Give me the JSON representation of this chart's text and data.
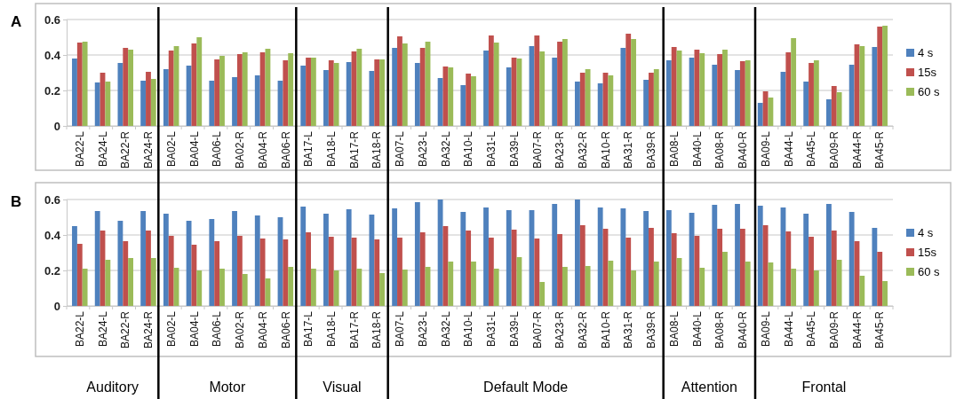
{
  "chart_data": [
    {
      "type": "bar",
      "title": "A",
      "categories": [
        "BA22-L",
        "BA24-L",
        "BA22-R",
        "BA24-R",
        "BA02-L",
        "BA04-L",
        "BA06-L",
        "BA02-R",
        "BA04-R",
        "BA06-R",
        "BA17-L",
        "BA18-L",
        "BA17-R",
        "BA18-R",
        "BA07-L",
        "BA23-L",
        "BA32-L",
        "BA10-L",
        "BA31-L",
        "BA39-L",
        "BA07-R",
        "BA23-R",
        "BA32-R",
        "BA10-R",
        "BA31-R",
        "BA39-R",
        "BA08-L",
        "BA40-L",
        "BA08-R",
        "BA40-R",
        "BA09-L",
        "BA44-L",
        "BA45-L",
        "BA09-R",
        "BA44-R",
        "BA45-R"
      ],
      "series": [
        {
          "name": "4 s",
          "color": "#4f81bd",
          "values": [
            0.38,
            0.245,
            0.355,
            0.255,
            0.32,
            0.34,
            0.255,
            0.275,
            0.285,
            0.255,
            0.34,
            0.315,
            0.36,
            0.31,
            0.44,
            0.355,
            0.27,
            0.23,
            0.425,
            0.33,
            0.45,
            0.385,
            0.25,
            0.24,
            0.44,
            0.26,
            0.37,
            0.385,
            0.345,
            0.315,
            0.13,
            0.305,
            0.25,
            0.15,
            0.345,
            0.445
          ]
        },
        {
          "name": "15s",
          "color": "#c0504d",
          "values": [
            0.47,
            0.3,
            0.44,
            0.305,
            0.425,
            0.465,
            0.375,
            0.405,
            0.415,
            0.37,
            0.385,
            0.37,
            0.42,
            0.375,
            0.505,
            0.44,
            0.335,
            0.295,
            0.51,
            0.385,
            0.51,
            0.475,
            0.3,
            0.3,
            0.52,
            0.3,
            0.445,
            0.43,
            0.405,
            0.365,
            0.195,
            0.415,
            0.355,
            0.225,
            0.46,
            0.56
          ]
        },
        {
          "name": "60 s",
          "color": "#9bbb59",
          "values": [
            0.475,
            0.25,
            0.43,
            0.265,
            0.45,
            0.5,
            0.395,
            0.415,
            0.435,
            0.41,
            0.385,
            0.355,
            0.435,
            0.375,
            0.465,
            0.475,
            0.33,
            0.28,
            0.47,
            0.38,
            0.42,
            0.49,
            0.32,
            0.285,
            0.49,
            0.32,
            0.425,
            0.41,
            0.43,
            0.37,
            0.16,
            0.495,
            0.37,
            0.19,
            0.45,
            0.565
          ]
        }
      ],
      "ylim": [
        0,
        0.6
      ],
      "yticks": [
        0,
        0.2,
        0.4,
        0.6
      ],
      "grid": "y",
      "legend": "right"
    },
    {
      "type": "bar",
      "title": "B",
      "categories": [
        "BA22-L",
        "BA24-L",
        "BA22-R",
        "BA24-R",
        "BA02-L",
        "BA04-L",
        "BA06-L",
        "BA02-R",
        "BA04-R",
        "BA06-R",
        "BA17-L",
        "BA18-L",
        "BA17-R",
        "BA18-R",
        "BA07-L",
        "BA23-L",
        "BA32-L",
        "BA10-L",
        "BA31-L",
        "BA39-L",
        "BA07-R",
        "BA23-R",
        "BA32-R",
        "BA10-R",
        "BA31-R",
        "BA39-R",
        "BA08-L",
        "BA40-L",
        "BA08-R",
        "BA40-R",
        "BA09-L",
        "BA44-L",
        "BA45-L",
        "BA09-R",
        "BA44-R",
        "BA45-R"
      ],
      "series": [
        {
          "name": "4 s",
          "color": "#4f81bd",
          "values": [
            0.45,
            0.535,
            0.48,
            0.535,
            0.52,
            0.48,
            0.49,
            0.535,
            0.51,
            0.5,
            0.56,
            0.52,
            0.545,
            0.515,
            0.55,
            0.585,
            0.6,
            0.53,
            0.555,
            0.54,
            0.54,
            0.575,
            0.6,
            0.555,
            0.55,
            0.535,
            0.54,
            0.525,
            0.57,
            0.575,
            0.565,
            0.555,
            0.52,
            0.575,
            0.53,
            0.44
          ]
        },
        {
          "name": "15s",
          "color": "#c0504d",
          "values": [
            0.35,
            0.425,
            0.365,
            0.425,
            0.395,
            0.345,
            0.365,
            0.395,
            0.38,
            0.375,
            0.415,
            0.39,
            0.385,
            0.375,
            0.385,
            0.415,
            0.45,
            0.425,
            0.385,
            0.43,
            0.38,
            0.405,
            0.455,
            0.435,
            0.385,
            0.44,
            0.41,
            0.395,
            0.435,
            0.435,
            0.455,
            0.42,
            0.39,
            0.425,
            0.365,
            0.305
          ]
        },
        {
          "name": "60 s",
          "color": "#9bbb59",
          "values": [
            0.21,
            0.26,
            0.27,
            0.27,
            0.215,
            0.2,
            0.21,
            0.18,
            0.155,
            0.22,
            0.21,
            0.2,
            0.21,
            0.185,
            0.205,
            0.22,
            0.25,
            0.25,
            0.21,
            0.275,
            0.135,
            0.22,
            0.225,
            0.255,
            0.2,
            0.25,
            0.27,
            0.215,
            0.305,
            0.25,
            0.245,
            0.21,
            0.2,
            0.26,
            0.17,
            0.14
          ]
        }
      ],
      "ylim": [
        0,
        0.6
      ],
      "yticks": [
        0,
        0.2,
        0.4,
        0.6
      ],
      "grid": "y",
      "legend": "right",
      "annotations": [
        "Auditory",
        "Motor",
        "Visual",
        "Default Mode",
        "Attention",
        "Frontal"
      ]
    }
  ]
}
